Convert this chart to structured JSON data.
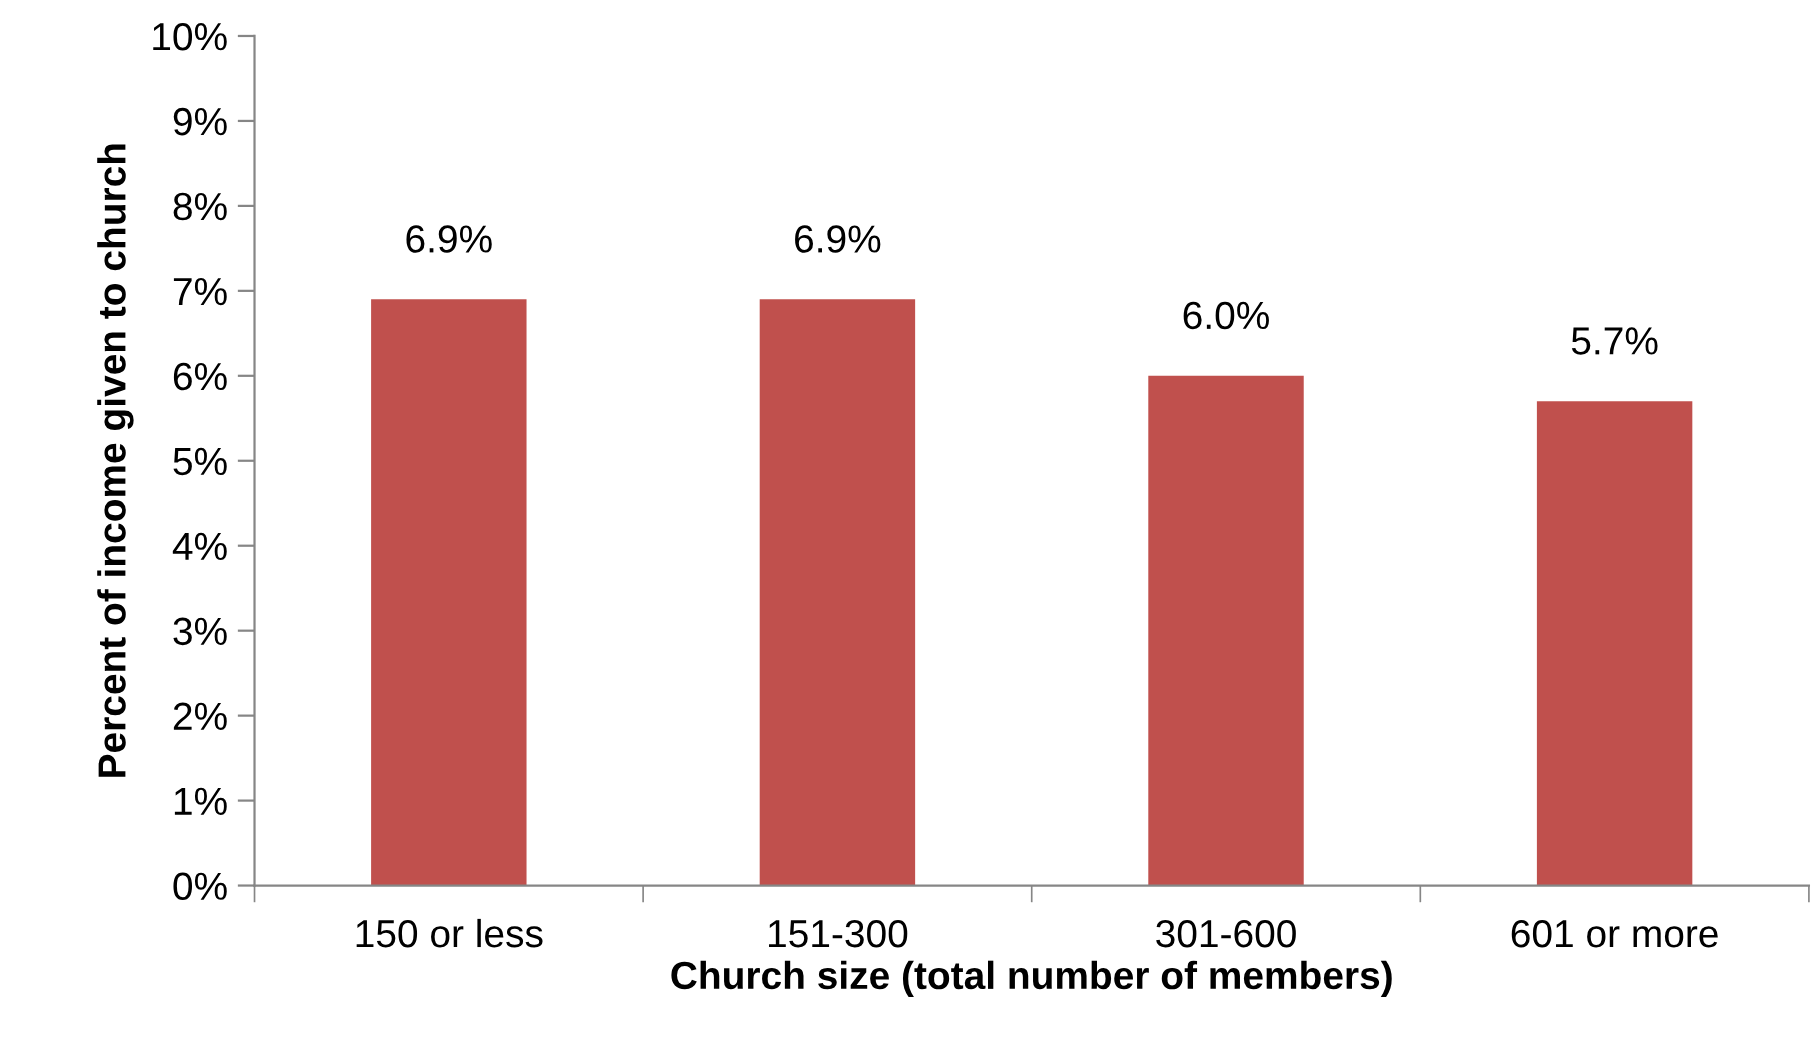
{
  "chart_data": {
    "type": "bar",
    "xlabel": "Church size (total number of members)",
    "ylabel": "Percent of income given to church",
    "categories": [
      "150 or less",
      "151-300",
      "301-600",
      "601 or more"
    ],
    "values": [
      6.9,
      6.9,
      6.0,
      5.7
    ],
    "color": "#c0504d",
    "value_labels": [
      "6.9%",
      "6.9%",
      "6.0%",
      "5.7%"
    ],
    "ylim": [
      0,
      10
    ],
    "yticks": [
      {
        "value": 0,
        "label": "0%"
      },
      {
        "value": 1,
        "label": "1%"
      },
      {
        "value": 2,
        "label": "2%"
      },
      {
        "value": 3,
        "label": "3%"
      },
      {
        "value": 4,
        "label": "4%"
      },
      {
        "value": 5,
        "label": "5%"
      },
      {
        "value": 6,
        "label": "6%"
      },
      {
        "value": 7,
        "label": "7%"
      },
      {
        "value": 8,
        "label": "8%"
      },
      {
        "value": 9,
        "label": "9%"
      },
      {
        "value": 10,
        "label": "10%"
      }
    ],
    "grid": false,
    "legend": false
  }
}
